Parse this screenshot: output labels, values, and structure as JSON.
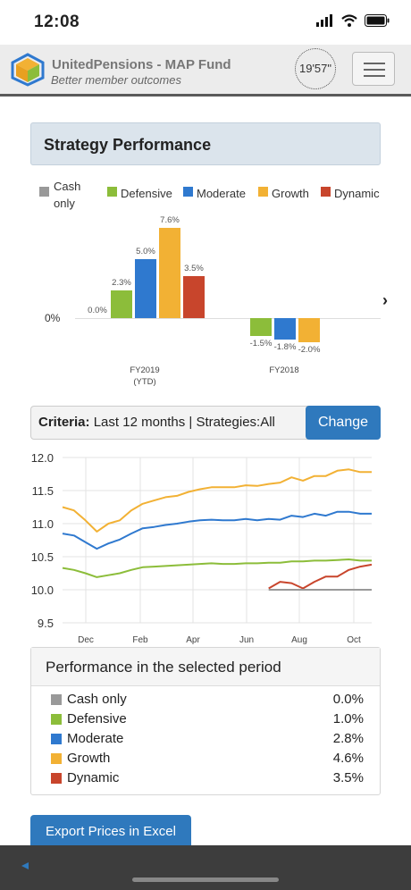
{
  "status_bar": {
    "time": "12:08"
  },
  "header": {
    "brand_title": "UnitedPensions - MAP Fund",
    "brand_subtitle": "Better member outcomes",
    "timer": "19'57\""
  },
  "strategy": {
    "title": "Strategy Performance",
    "legend": [
      {
        "name": "Cash only",
        "color": "#999999"
      },
      {
        "name": "Defensive",
        "color": "#8cbd3a"
      },
      {
        "name": "Moderate",
        "color": "#2f79cf"
      },
      {
        "name": "Growth",
        "color": "#f2b134"
      },
      {
        "name": "Dynamic",
        "color": "#c8452c"
      }
    ]
  },
  "criteria": {
    "label": "Criteria:",
    "text": "Last 12 months | Strategies:All",
    "change_button": "Change"
  },
  "performance": {
    "title": "Performance in the selected period",
    "rows": [
      {
        "name": "Cash only",
        "value": "0.0%",
        "color": "#999999"
      },
      {
        "name": "Defensive",
        "value": "1.0%",
        "color": "#8cbd3a"
      },
      {
        "name": "Moderate",
        "value": "2.8%",
        "color": "#2f79cf"
      },
      {
        "name": "Growth",
        "value": "4.6%",
        "color": "#f2b134"
      },
      {
        "name": "Dynamic",
        "value": "3.5%",
        "color": "#c8452c"
      }
    ]
  },
  "export_button": "Export Prices in Excel",
  "chart_data": [
    {
      "type": "bar",
      "title": "",
      "categories": [
        "FY2019\n(YTD)",
        "FY2018"
      ],
      "zero_label": "0%",
      "series": [
        {
          "name": "Cash only",
          "values": [
            0.0,
            null
          ],
          "labels": [
            "0.0%",
            ""
          ]
        },
        {
          "name": "Defensive",
          "values": [
            2.3,
            -1.5
          ],
          "labels": [
            "2.3%",
            "-1.5%"
          ]
        },
        {
          "name": "Moderate",
          "values": [
            5.0,
            -1.8
          ],
          "labels": [
            "5.0%",
            "-1.8%"
          ]
        },
        {
          "name": "Growth",
          "values": [
            7.6,
            -2.0
          ],
          "labels": [
            "7.6%",
            "-2.0%"
          ]
        },
        {
          "name": "Dynamic",
          "values": [
            3.5,
            null
          ],
          "labels": [
            "3.5%",
            ""
          ]
        }
      ]
    },
    {
      "type": "line",
      "title": "",
      "x_ticks": [
        "Dec",
        "Feb",
        "Apr",
        "Jun",
        "Aug",
        "Oct"
      ],
      "y_ticks": [
        "12.0",
        "11.5",
        "11.0",
        "10.5",
        "10.0",
        "9.5"
      ],
      "ylim": [
        9.5,
        12.0
      ],
      "grid": true,
      "series": [
        {
          "name": "Growth",
          "color": "#f2b134",
          "values": [
            11.25,
            11.2,
            11.05,
            10.88,
            11.0,
            11.05,
            11.2,
            11.3,
            11.35,
            11.4,
            11.42,
            11.48,
            11.52,
            11.55,
            11.55,
            11.55,
            11.58,
            11.57,
            11.6,
            11.62,
            11.7,
            11.65,
            11.72,
            11.72,
            11.8,
            11.82,
            11.78,
            11.78
          ]
        },
        {
          "name": "Moderate",
          "color": "#2f79cf",
          "values": [
            10.85,
            10.82,
            10.72,
            10.62,
            10.7,
            10.76,
            10.85,
            10.93,
            10.95,
            10.98,
            11.0,
            11.03,
            11.05,
            11.06,
            11.05,
            11.05,
            11.07,
            11.05,
            11.07,
            11.06,
            11.12,
            11.1,
            11.15,
            11.12,
            11.18,
            11.18,
            11.15,
            11.15
          ]
        },
        {
          "name": "Defensive",
          "color": "#8cbd3a",
          "values": [
            10.33,
            10.3,
            10.25,
            10.19,
            10.22,
            10.25,
            10.3,
            10.34,
            10.35,
            10.36,
            10.37,
            10.38,
            10.39,
            10.4,
            10.39,
            10.39,
            10.4,
            10.4,
            10.41,
            10.41,
            10.43,
            10.43,
            10.44,
            10.44,
            10.45,
            10.46,
            10.44,
            10.44
          ]
        },
        {
          "name": "Dynamic",
          "color": "#c8452c",
          "values": [
            null,
            null,
            null,
            null,
            null,
            null,
            null,
            null,
            null,
            null,
            null,
            null,
            null,
            null,
            null,
            null,
            null,
            null,
            10.02,
            10.12,
            10.1,
            10.02,
            10.12,
            10.2,
            10.2,
            10.3,
            10.35,
            10.38
          ]
        },
        {
          "name": "Cash only",
          "color": "#999999",
          "values": [
            null,
            null,
            null,
            null,
            null,
            null,
            null,
            null,
            null,
            null,
            null,
            null,
            null,
            null,
            null,
            null,
            null,
            null,
            10.0,
            10.0,
            10.0,
            10.0,
            10.0,
            10.0,
            10.0,
            10.0,
            10.0,
            10.0
          ]
        }
      ]
    }
  ]
}
